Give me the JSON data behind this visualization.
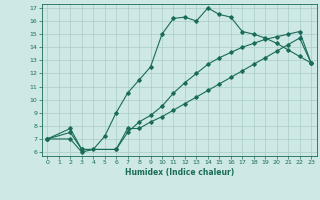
{
  "xlabel": "Humidex (Indice chaleur)",
  "bg_color": "#cde8e5",
  "line_color": "#1a6b5a",
  "grid_color": "#a8ccc9",
  "xlim": [
    -0.5,
    23.5
  ],
  "ylim": [
    5.7,
    17.3
  ],
  "xticks": [
    0,
    1,
    2,
    3,
    4,
    5,
    6,
    7,
    8,
    9,
    10,
    11,
    12,
    13,
    14,
    15,
    16,
    17,
    18,
    19,
    20,
    21,
    22,
    23
  ],
  "yticks": [
    6,
    7,
    8,
    9,
    10,
    11,
    12,
    13,
    14,
    15,
    16,
    17
  ],
  "line1_x": [
    0,
    2,
    3,
    4,
    5,
    6,
    7,
    8,
    9,
    10,
    11,
    12,
    13,
    14,
    15,
    16,
    17,
    18,
    19,
    20,
    21,
    22,
    23
  ],
  "line1_y": [
    7,
    7,
    6,
    6.2,
    7.2,
    9.0,
    10.5,
    11.5,
    12.5,
    15.0,
    16.2,
    16.3,
    16.0,
    17.0,
    16.5,
    16.3,
    15.2,
    15.0,
    14.7,
    14.3,
    13.8,
    13.3,
    12.8
  ],
  "line2_x": [
    0,
    2,
    3,
    6,
    7,
    8,
    9,
    10,
    11,
    12,
    13,
    14,
    15,
    16,
    17,
    18,
    19,
    20,
    21,
    22,
    23
  ],
  "line2_y": [
    7,
    7.5,
    6.2,
    6.2,
    7.5,
    8.3,
    8.8,
    9.5,
    10.5,
    11.3,
    12.0,
    12.7,
    13.2,
    13.6,
    14.0,
    14.3,
    14.6,
    14.8,
    15.0,
    15.2,
    12.8
  ],
  "line3_x": [
    0,
    2,
    3,
    6,
    7,
    8,
    9,
    10,
    11,
    12,
    13,
    14,
    15,
    16,
    17,
    18,
    19,
    20,
    21,
    22,
    23
  ],
  "line3_y": [
    7,
    7.8,
    6.2,
    6.2,
    7.8,
    7.8,
    8.3,
    8.7,
    9.2,
    9.7,
    10.2,
    10.7,
    11.2,
    11.7,
    12.2,
    12.7,
    13.2,
    13.7,
    14.2,
    14.7,
    12.8
  ]
}
